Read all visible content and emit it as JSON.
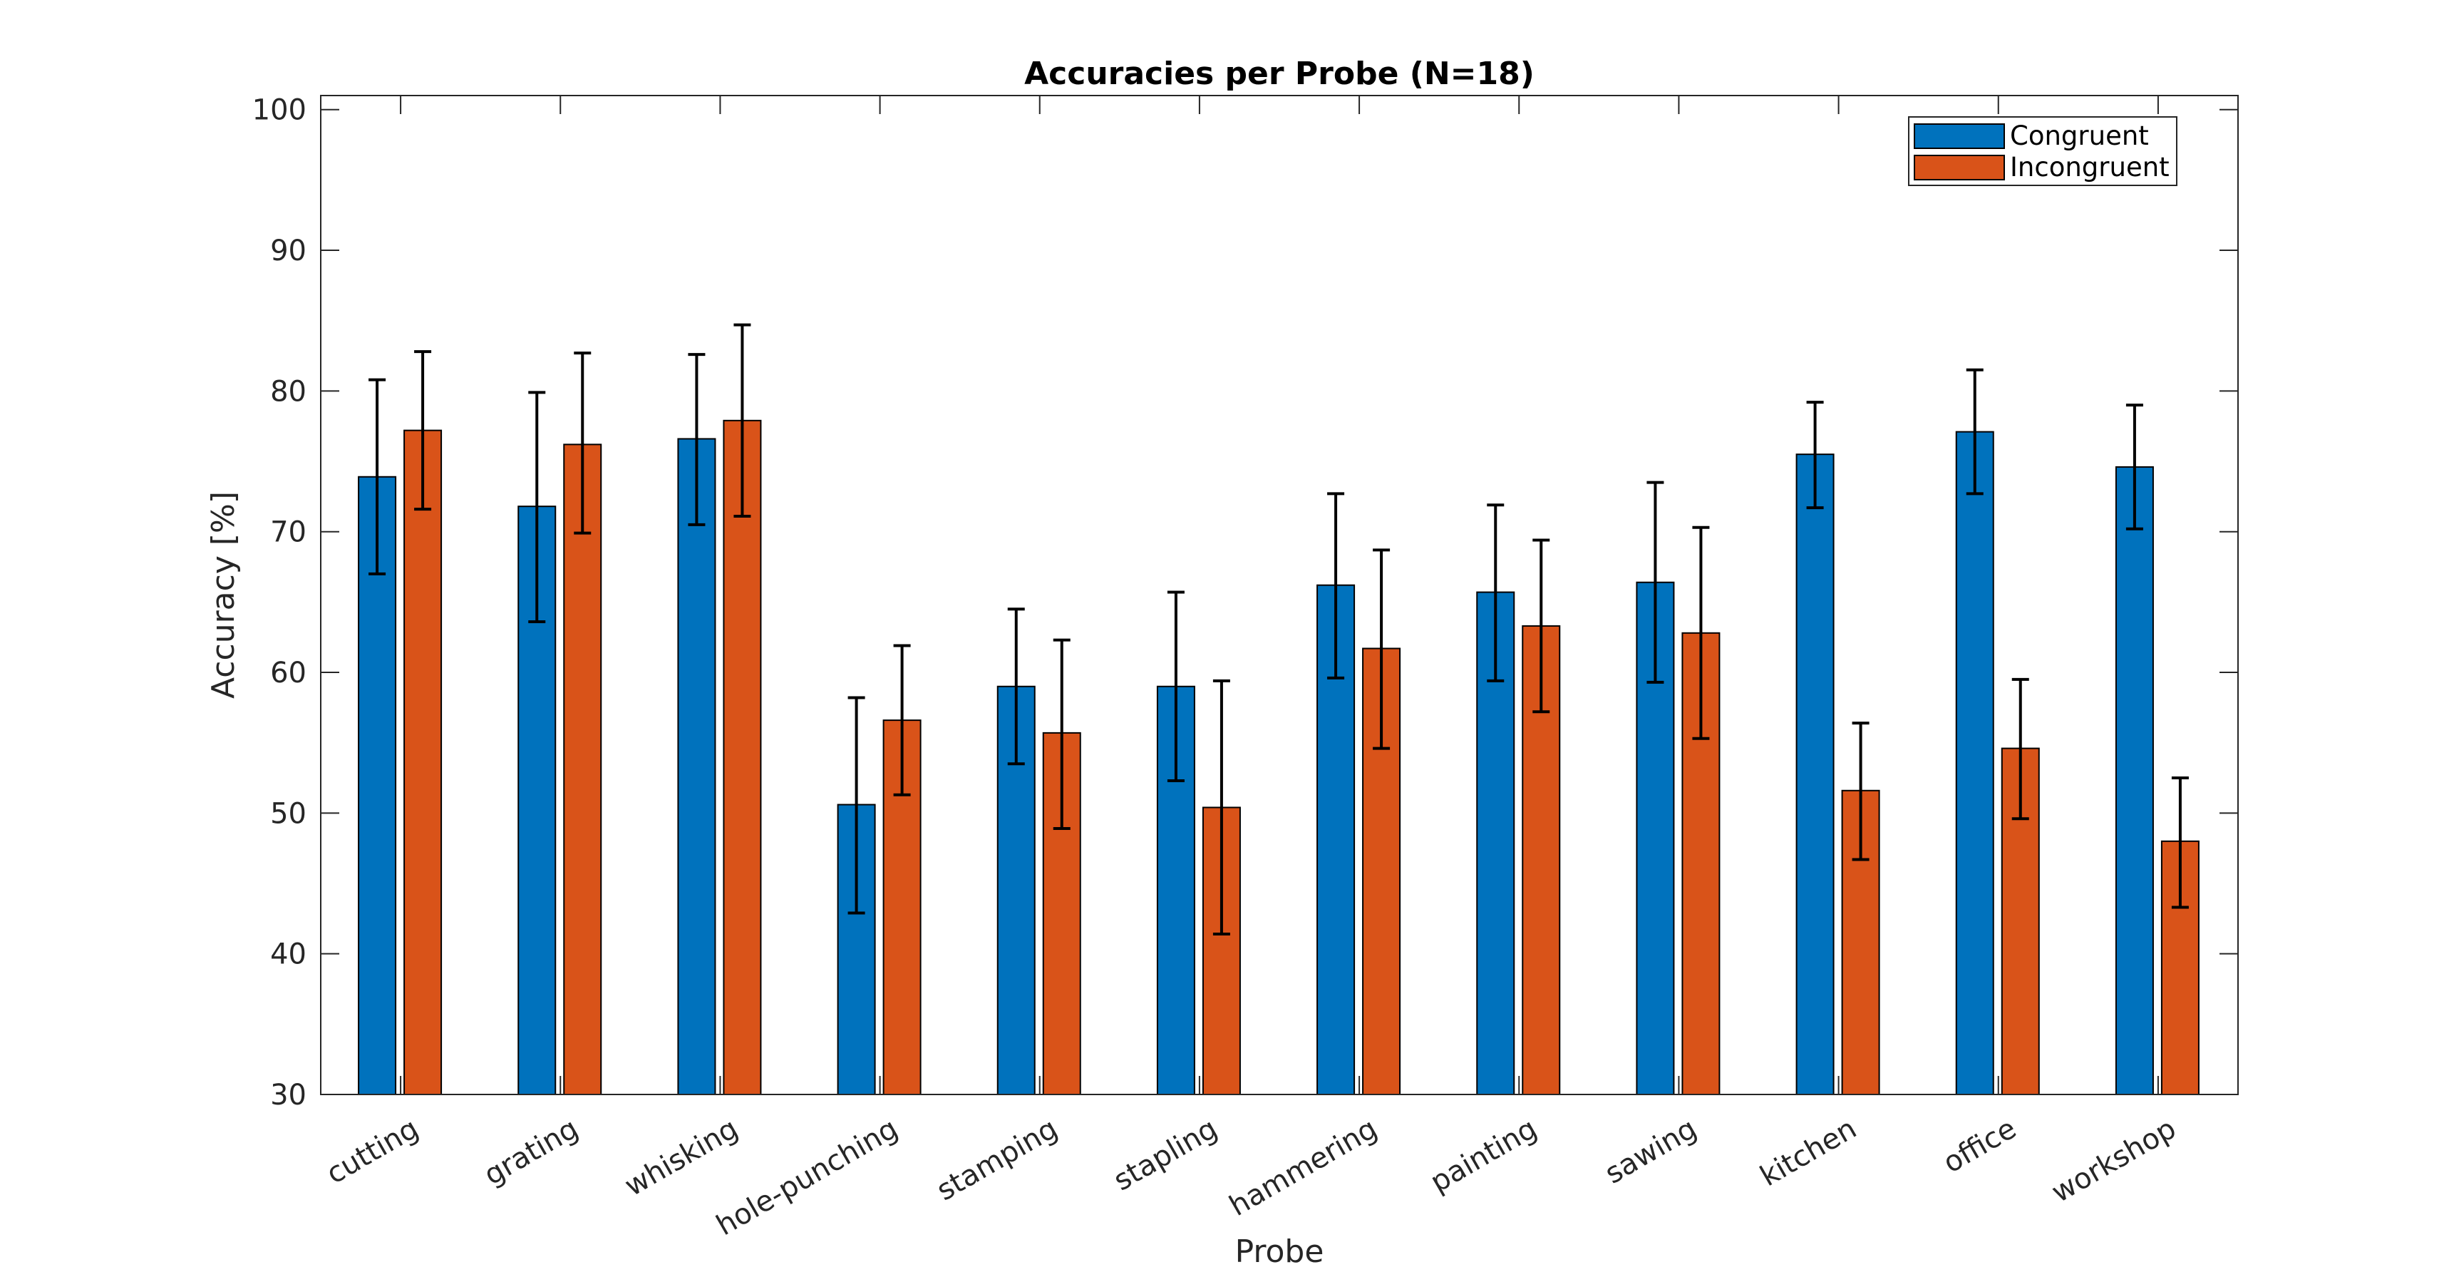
{
  "chart_data": {
    "type": "bar",
    "title": "Accuracies per Probe (N=18)",
    "xlabel": "Probe",
    "ylabel": "Accuracy [%]",
    "ylim": [
      30,
      101
    ],
    "yticks": [
      30,
      40,
      50,
      60,
      70,
      80,
      90,
      100
    ],
    "grid": false,
    "legend_position": "top-right",
    "categories": [
      "cutting",
      "grating",
      "whisking",
      "hole-punching",
      "stamping",
      "stapling",
      "hammering",
      "painting",
      "sawing",
      "kitchen",
      "office",
      "workshop"
    ],
    "series": [
      {
        "name": "Congruent",
        "color": "#0072BD",
        "values": [
          73.9,
          71.8,
          76.6,
          50.6,
          59.0,
          59.0,
          66.2,
          65.7,
          66.4,
          75.5,
          77.1,
          74.6
        ],
        "error_low": [
          67.0,
          63.6,
          70.5,
          42.9,
          53.5,
          52.3,
          59.6,
          59.4,
          59.3,
          71.7,
          72.7,
          70.2
        ],
        "error_high": [
          80.8,
          79.9,
          82.6,
          58.2,
          64.5,
          65.7,
          72.7,
          71.9,
          73.5,
          79.2,
          81.5,
          79.0
        ]
      },
      {
        "name": "Incongruent",
        "color": "#D95319",
        "values": [
          77.2,
          76.2,
          77.9,
          56.6,
          55.7,
          50.4,
          61.7,
          63.3,
          62.8,
          51.6,
          54.6,
          48.0
        ],
        "error_low": [
          71.6,
          69.9,
          71.1,
          51.3,
          48.9,
          41.4,
          54.6,
          57.2,
          55.3,
          46.7,
          49.6,
          43.3
        ],
        "error_high": [
          82.8,
          82.7,
          84.7,
          61.9,
          62.3,
          59.4,
          68.7,
          69.4,
          70.3,
          56.4,
          59.5,
          52.5
        ]
      }
    ]
  }
}
